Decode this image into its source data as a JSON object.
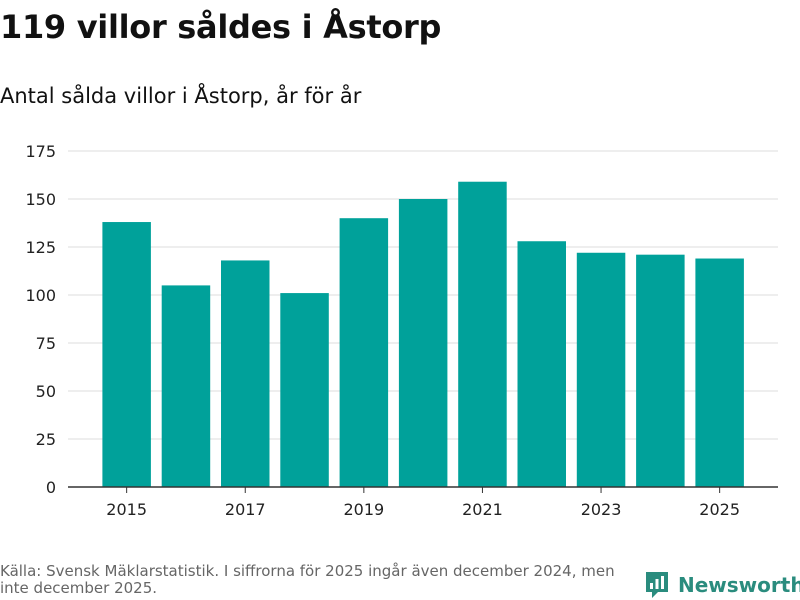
{
  "title": "119 villor såldes i Åstorp",
  "subtitle": "Antal sålda villor i Åstorp, år för år",
  "source": "Källa: Svensk Mäklarstatistik. I siffrorna för 2025 ingår även december 2024, men inte december 2025.",
  "brand": "Newsworthy",
  "colors": {
    "bar": "#00a19a",
    "grid": "#dcdcdc",
    "axis": "#333333",
    "brand": "#2a8c7e"
  },
  "chart_data": {
    "type": "bar",
    "categories": [
      "2015",
      "2016",
      "2017",
      "2018",
      "2019",
      "2020",
      "2021",
      "2022",
      "2023",
      "2024",
      "2025"
    ],
    "values": [
      138,
      105,
      118,
      101,
      140,
      150,
      159,
      128,
      122,
      121,
      119
    ],
    "x_tick_labels": [
      "2015",
      "2017",
      "2019",
      "2021",
      "2023",
      "2025"
    ],
    "y_ticks": [
      0,
      25,
      50,
      75,
      100,
      125,
      150,
      175
    ],
    "ylim": [
      0,
      175
    ],
    "xlabel": "",
    "ylabel": "",
    "grid": true
  }
}
